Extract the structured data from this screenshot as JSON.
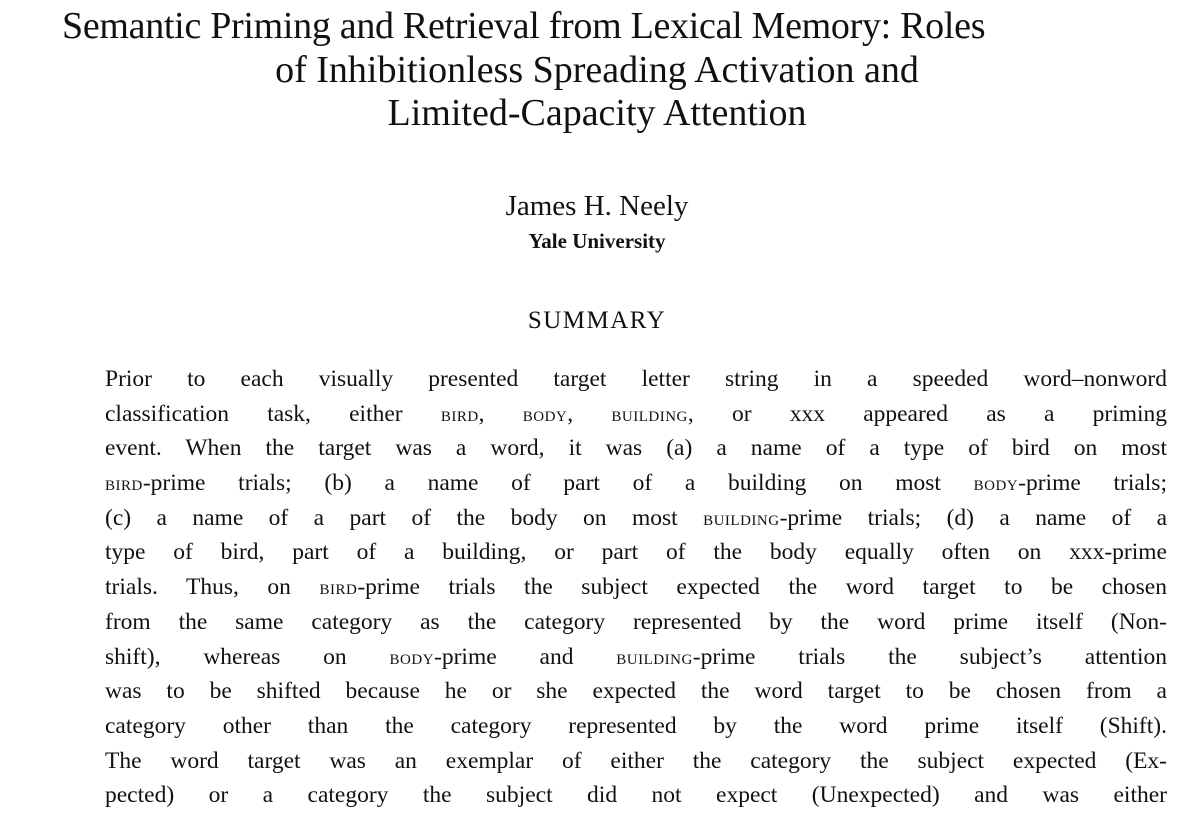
{
  "title": {
    "lines": [
      "Semantic Priming and Retrieval from Lexical Memory: Roles",
      "of Inhibitionless Spreading Activation and",
      "Limited-Capacity Attention"
    ]
  },
  "author": "James H. Neely",
  "affiliation": "Yale University",
  "section_heading": "SUMMARY",
  "summary_lines": [
    [
      {
        "t": "Prior to each visually presented target letter string in a speeded word–nonword"
      }
    ],
    [
      {
        "t": "classification task, either "
      },
      {
        "t": "BIRD",
        "sc": true
      },
      {
        "t": ", "
      },
      {
        "t": "BODY",
        "sc": true
      },
      {
        "t": ", "
      },
      {
        "t": "BUILDING",
        "sc": true
      },
      {
        "t": ", or xxx appeared as a priming"
      }
    ],
    [
      {
        "t": "event. When the target was a word, it was (a) a name of a type of bird on most"
      }
    ],
    [
      {
        "t": "BIRD",
        "sc": true
      },
      {
        "t": "-prime trials; (b) a name of part of a building on most "
      },
      {
        "t": "BODY",
        "sc": true
      },
      {
        "t": "-prime trials;"
      }
    ],
    [
      {
        "t": "(c) a name of a part of the body on most "
      },
      {
        "t": "BUILDING",
        "sc": true
      },
      {
        "t": "-prime trials; (d) a name of a"
      }
    ],
    [
      {
        "t": "type of bird, part of a building, or part of the body equally often on xxx-prime"
      }
    ],
    [
      {
        "t": "trials. Thus, on "
      },
      {
        "t": "BIRD",
        "sc": true
      },
      {
        "t": "-prime trials the subject expected the word target to be chosen"
      }
    ],
    [
      {
        "t": "from the same category as the category represented by the word prime itself (Non-"
      }
    ],
    [
      {
        "t": "shift), whereas on "
      },
      {
        "t": "BODY",
        "sc": true
      },
      {
        "t": "-prime and "
      },
      {
        "t": "BUILDING",
        "sc": true
      },
      {
        "t": "-prime trials the subject’s attention"
      }
    ],
    [
      {
        "t": "was to be shifted because he or she expected the word target to be chosen from a"
      }
    ],
    [
      {
        "t": "category other than the category represented by the word prime itself (Shift)."
      }
    ],
    [
      {
        "t": "The word target was an exemplar of either the category the subject expected (Ex-"
      }
    ],
    [
      {
        "t": "pected) or a category the subject did not expect (Unexpected) and was either"
      }
    ]
  ]
}
